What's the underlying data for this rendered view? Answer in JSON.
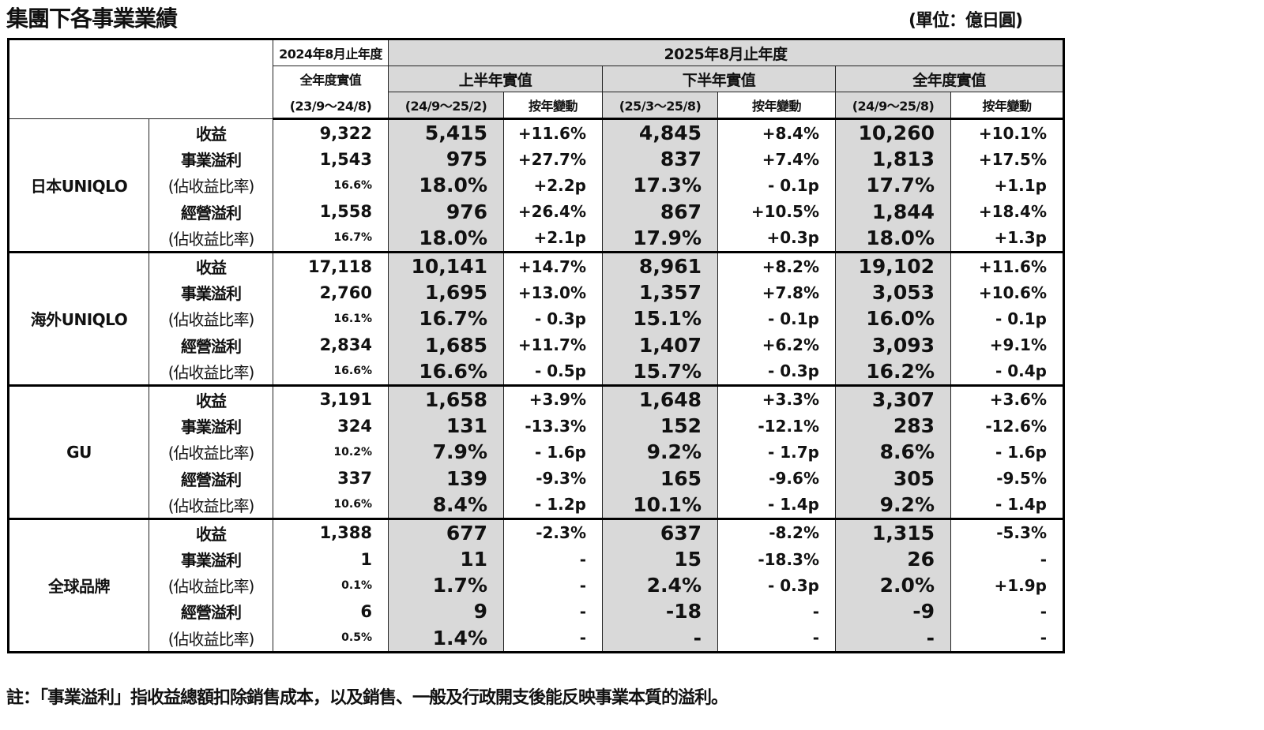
{
  "title": "集團下各事業業績",
  "unit": "(單位：億日圓)",
  "header": {
    "fy2024": "2024年8月止年度",
    "fy2025": "2025年8月止年度",
    "full_year_actual": "全年度實值",
    "first_half_actual": "上半年實值",
    "second_half_actual": "下半年實值",
    "full_year_actual_2025": "全年度實值",
    "period_fy24": "(23/9～24/8)",
    "period_h1": "(24/9～25/2)",
    "period_h2": "(25/3～25/8)",
    "period_fy25": "(24/9～25/8)",
    "yoy": "按年變動"
  },
  "segments": [
    {
      "name": "日本UNIQLO",
      "rows": [
        {
          "label": "收益",
          "ratio": false,
          "values": [
            "9,322",
            "5,415",
            "+11.6%",
            "4,845",
            "+8.4%",
            "10,260",
            "+10.1%"
          ]
        },
        {
          "label": "事業溢利",
          "ratio": false,
          "values": [
            "1,543",
            "975",
            "+27.7%",
            "837",
            "+7.4%",
            "1,813",
            "+17.5%"
          ]
        },
        {
          "label": "(佔收益比率)",
          "ratio": true,
          "values": [
            "16.6%",
            "18.0%",
            "+2.2p",
            "17.3%",
            "- 0.1p",
            "17.7%",
            "+1.1p"
          ]
        },
        {
          "label": "經營溢利",
          "ratio": false,
          "values": [
            "1,558",
            "976",
            "+26.4%",
            "867",
            "+10.5%",
            "1,844",
            "+18.4%"
          ]
        },
        {
          "label": "(佔收益比率)",
          "ratio": true,
          "values": [
            "16.7%",
            "18.0%",
            "+2.1p",
            "17.9%",
            "+0.3p",
            "18.0%",
            "+1.3p"
          ]
        }
      ]
    },
    {
      "name": "海外UNIQLO",
      "rows": [
        {
          "label": "收益",
          "ratio": false,
          "values": [
            "17,118",
            "10,141",
            "+14.7%",
            "8,961",
            "+8.2%",
            "19,102",
            "+11.6%"
          ]
        },
        {
          "label": "事業溢利",
          "ratio": false,
          "values": [
            "2,760",
            "1,695",
            "+13.0%",
            "1,357",
            "+7.8%",
            "3,053",
            "+10.6%"
          ]
        },
        {
          "label": "(佔收益比率)",
          "ratio": true,
          "values": [
            "16.1%",
            "16.7%",
            "- 0.3p",
            "15.1%",
            "- 0.1p",
            "16.0%",
            "- 0.1p"
          ]
        },
        {
          "label": "經營溢利",
          "ratio": false,
          "values": [
            "2,834",
            "1,685",
            "+11.7%",
            "1,407",
            "+6.2%",
            "3,093",
            "+9.1%"
          ]
        },
        {
          "label": "(佔收益比率)",
          "ratio": true,
          "values": [
            "16.6%",
            "16.6%",
            "- 0.5p",
            "15.7%",
            "- 0.3p",
            "16.2%",
            "- 0.4p"
          ]
        }
      ]
    },
    {
      "name": "GU",
      "rows": [
        {
          "label": "收益",
          "ratio": false,
          "values": [
            "3,191",
            "1,658",
            "+3.9%",
            "1,648",
            "+3.3%",
            "3,307",
            "+3.6%"
          ]
        },
        {
          "label": "事業溢利",
          "ratio": false,
          "values": [
            "324",
            "131",
            "-13.3%",
            "152",
            "-12.1%",
            "283",
            "-12.6%"
          ]
        },
        {
          "label": "(佔收益比率)",
          "ratio": true,
          "values": [
            "10.2%",
            "7.9%",
            "- 1.6p",
            "9.2%",
            "- 1.7p",
            "8.6%",
            "- 1.6p"
          ]
        },
        {
          "label": "經營溢利",
          "ratio": false,
          "values": [
            "337",
            "139",
            "-9.3%",
            "165",
            "-9.6%",
            "305",
            "-9.5%"
          ]
        },
        {
          "label": "(佔收益比率)",
          "ratio": true,
          "values": [
            "10.6%",
            "8.4%",
            "- 1.2p",
            "10.1%",
            "- 1.4p",
            "9.2%",
            "- 1.4p"
          ]
        }
      ]
    },
    {
      "name": "全球品牌",
      "rows": [
        {
          "label": "收益",
          "ratio": false,
          "values": [
            "1,388",
            "677",
            "-2.3%",
            "637",
            "-8.2%",
            "1,315",
            "-5.3%"
          ]
        },
        {
          "label": "事業溢利",
          "ratio": false,
          "values": [
            "1",
            "11",
            "-",
            "15",
            "-18.3%",
            "26",
            "-"
          ]
        },
        {
          "label": "(佔收益比率)",
          "ratio": true,
          "values": [
            "0.1%",
            "1.7%",
            "-",
            "2.4%",
            "- 0.3p",
            "2.0%",
            "+1.9p"
          ]
        },
        {
          "label": "經營溢利",
          "ratio": false,
          "values": [
            "6",
            "9",
            "-",
            "-18",
            "-",
            "-9",
            "-"
          ]
        },
        {
          "label": "(佔收益比率)",
          "ratio": true,
          "values": [
            "0.5%",
            "1.4%",
            "-",
            "-",
            "-",
            "-",
            "-"
          ]
        }
      ]
    }
  ],
  "note": "註：「事業溢利」指收益總額扣除銷售成本，以及銷售、一般及行政開支後能反映事業本質的溢利。",
  "colors": {
    "shade": "#d9d9d9",
    "border": "#000000"
  }
}
